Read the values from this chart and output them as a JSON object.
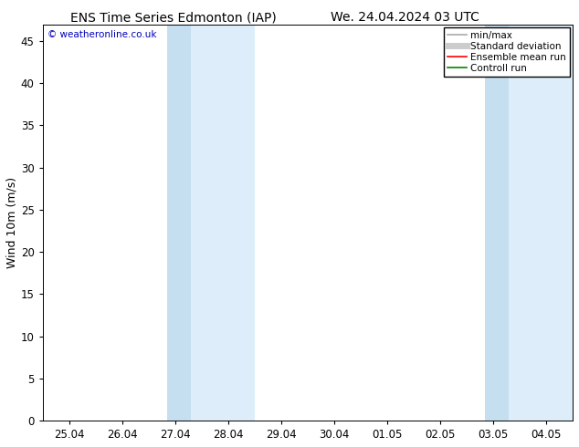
{
  "title_left": "ENS Time Series Edmonton (IAP)",
  "title_right": "We. 24.04.2024 03 UTC",
  "ylabel": "Wind 10m (m/s)",
  "watermark": "© weatheronline.co.uk",
  "watermark_color": "#0000bb",
  "ylim": [
    0,
    47
  ],
  "yticks": [
    0,
    5,
    10,
    15,
    20,
    25,
    30,
    35,
    40,
    45
  ],
  "xtick_labels": [
    "25.04",
    "26.04",
    "27.04",
    "28.04",
    "29.04",
    "30.04",
    "01.05",
    "02.05",
    "03.05",
    "04.05"
  ],
  "background_color": "#ffffff",
  "plot_bg_color": "#ffffff",
  "shaded_regions": [
    {
      "xstart": 1.5,
      "xend": 2.5,
      "color": "#ddeeff"
    },
    {
      "xstart": 2.5,
      "xend": 3.5,
      "color": "#c8e0f8"
    },
    {
      "xstart": 7.0,
      "xend": 8.0,
      "color": "#ddeeff"
    },
    {
      "xstart": 8.0,
      "xend": 9.5,
      "color": "#c8e0f8"
    }
  ],
  "legend_entries": [
    {
      "label": "min/max",
      "color": "#aaaaaa",
      "lw": 1.2,
      "style": "solid"
    },
    {
      "label": "Standard deviation",
      "color": "#cccccc",
      "lw": 5,
      "style": "solid"
    },
    {
      "label": "Ensemble mean run",
      "color": "#ff0000",
      "lw": 1.2,
      "style": "solid"
    },
    {
      "label": "Controll run",
      "color": "#008800",
      "lw": 1.2,
      "style": "solid"
    }
  ],
  "title_fontsize": 10,
  "axis_label_fontsize": 9,
  "tick_fontsize": 8.5,
  "legend_fontsize": 7.5,
  "watermark_fontsize": 7.5,
  "font_family": "DejaVu Sans"
}
